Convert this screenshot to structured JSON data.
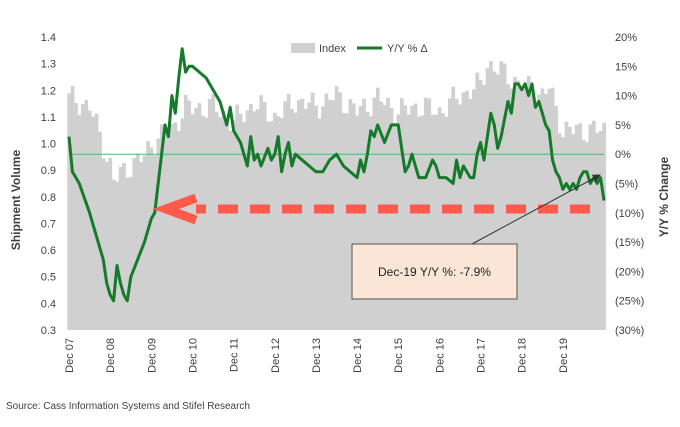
{
  "chart_data": {
    "type": "bar-line-combo",
    "colors": {
      "bars": "#d0d0d0",
      "line": "#157a2a",
      "zero_line": "#4dbb6b",
      "arrow": "#ff5a4a",
      "callout_fill": "#fbe5d6",
      "callout_border": "#555555",
      "right_axis_title": "#1a7a2e"
    },
    "legend": [
      {
        "name": "Index",
        "kind": "bar"
      },
      {
        "name": "Y/Y  % Δ",
        "kind": "line"
      }
    ],
    "left_axis": {
      "title": "Shipment Volume",
      "min": 0.3,
      "max": 1.4,
      "ticks": [
        "0.3",
        "0.4",
        "0.5",
        "0.6",
        "0.7",
        "0.8",
        "0.9",
        "1.0",
        "1.1",
        "1.2",
        "1.3",
        "1.4"
      ]
    },
    "right_axis": {
      "title": "Y/Y  % Change",
      "min": -30,
      "max": 20,
      "ticks": [
        {
          "value": 20,
          "label": "20%"
        },
        {
          "value": 15,
          "label": "15%"
        },
        {
          "value": 10,
          "label": "10%"
        },
        {
          "value": 5,
          "label": "5%"
        },
        {
          "value": 0,
          "label": "0%"
        },
        {
          "value": -5,
          "label": "(5%)"
        },
        {
          "value": -10,
          "label": "(10%)"
        },
        {
          "value": -15,
          "label": "(15%)"
        },
        {
          "value": -20,
          "label": "(20%)"
        },
        {
          "value": -25,
          "label": "(25%)"
        },
        {
          "value": -30,
          "label": "(30%)"
        }
      ]
    },
    "x_labels": [
      "Dec 07",
      "Dec 08",
      "Dec 09",
      "Dec 10",
      "Dec 11",
      "Dec 12",
      "Dec 13",
      "Dec 14",
      "Dec 15",
      "Dec 16",
      "Dec 17",
      "Dec 18",
      "Dec 19"
    ],
    "index_anchors": [
      [
        0,
        1.17
      ],
      [
        6,
        1.14
      ],
      [
        12,
        0.92
      ],
      [
        13,
        0.86
      ],
      [
        18,
        0.92
      ],
      [
        22,
        0.95
      ],
      [
        24,
        1.0
      ],
      [
        27,
        1.03
      ],
      [
        30,
        1.05
      ],
      [
        34,
        1.14
      ],
      [
        36,
        1.13
      ],
      [
        42,
        1.14
      ],
      [
        48,
        1.08
      ],
      [
        54,
        1.15
      ],
      [
        60,
        1.1
      ],
      [
        66,
        1.16
      ],
      [
        72,
        1.14
      ],
      [
        78,
        1.18
      ],
      [
        84,
        1.12
      ],
      [
        90,
        1.17
      ],
      [
        96,
        1.12
      ],
      [
        102,
        1.14
      ],
      [
        108,
        1.12
      ],
      [
        114,
        1.18
      ],
      [
        120,
        1.22
      ],
      [
        122,
        1.3
      ],
      [
        126,
        1.27
      ],
      [
        132,
        1.22
      ],
      [
        138,
        1.18
      ],
      [
        140,
        1.21
      ],
      [
        144,
        1.05
      ]
    ],
    "yoy_anchors": [
      [
        0,
        3
      ],
      [
        1,
        -3
      ],
      [
        3,
        -5
      ],
      [
        6,
        -10
      ],
      [
        8,
        -14
      ],
      [
        10,
        -18
      ],
      [
        11,
        -22
      ],
      [
        12,
        -24
      ],
      [
        13,
        -25
      ],
      [
        14,
        -19
      ],
      [
        15,
        -22
      ],
      [
        16,
        -24
      ],
      [
        17,
        -25
      ],
      [
        18,
        -21
      ],
      [
        20,
        -18
      ],
      [
        22,
        -15
      ],
      [
        24,
        -11
      ],
      [
        25,
        -10
      ],
      [
        26,
        -5
      ],
      [
        27,
        0
      ],
      [
        28,
        5
      ],
      [
        29,
        3
      ],
      [
        30,
        10
      ],
      [
        31,
        7
      ],
      [
        32,
        13
      ],
      [
        33,
        18
      ],
      [
        34,
        14
      ],
      [
        35,
        15
      ],
      [
        36,
        15
      ],
      [
        38,
        14
      ],
      [
        40,
        13
      ],
      [
        42,
        11
      ],
      [
        44,
        9
      ],
      [
        46,
        5
      ],
      [
        47,
        8
      ],
      [
        48,
        4
      ],
      [
        50,
        2
      ],
      [
        52,
        -2
      ],
      [
        53,
        3
      ],
      [
        54,
        -1
      ],
      [
        55,
        0
      ],
      [
        56,
        -2
      ],
      [
        58,
        1
      ],
      [
        59,
        -1
      ],
      [
        60,
        0
      ],
      [
        61,
        3
      ],
      [
        62,
        -3
      ],
      [
        63,
        0
      ],
      [
        64,
        2
      ],
      [
        65,
        -2
      ],
      [
        66,
        0
      ],
      [
        68,
        -1
      ],
      [
        70,
        -2
      ],
      [
        72,
        -3
      ],
      [
        74,
        -3
      ],
      [
        76,
        -1
      ],
      [
        78,
        0
      ],
      [
        80,
        -2
      ],
      [
        82,
        -3
      ],
      [
        84,
        -4
      ],
      [
        85,
        -1
      ],
      [
        86,
        -3
      ],
      [
        87,
        0
      ],
      [
        88,
        4
      ],
      [
        89,
        3
      ],
      [
        90,
        5
      ],
      [
        92,
        2
      ],
      [
        94,
        5
      ],
      [
        96,
        5
      ],
      [
        97,
        1
      ],
      [
        98,
        -3
      ],
      [
        99,
        -2
      ],
      [
        100,
        0
      ],
      [
        102,
        -4
      ],
      [
        104,
        -4
      ],
      [
        106,
        -1
      ],
      [
        107,
        -2
      ],
      [
        108,
        -4
      ],
      [
        110,
        -4
      ],
      [
        112,
        -5
      ],
      [
        113,
        -1
      ],
      [
        114,
        -4
      ],
      [
        115,
        -2
      ],
      [
        117,
        -4
      ],
      [
        118,
        -4
      ],
      [
        119,
        0
      ],
      [
        120,
        2
      ],
      [
        121,
        -1
      ],
      [
        122,
        3
      ],
      [
        123,
        7
      ],
      [
        124,
        5
      ],
      [
        125,
        1
      ],
      [
        126,
        3
      ],
      [
        128,
        9
      ],
      [
        129,
        7
      ],
      [
        130,
        12
      ],
      [
        131,
        12
      ],
      [
        132,
        11
      ],
      [
        133,
        12
      ],
      [
        134,
        10
      ],
      [
        135,
        12
      ],
      [
        136,
        8
      ],
      [
        137,
        9
      ],
      [
        138,
        7
      ],
      [
        139,
        5
      ],
      [
        140,
        4
      ],
      [
        141,
        -1
      ],
      [
        142,
        -3
      ],
      [
        143,
        -4
      ],
      [
        144,
        -6
      ],
      [
        145,
        -5
      ],
      [
        146,
        -6
      ],
      [
        147,
        -5
      ],
      [
        148,
        -6
      ],
      [
        149,
        -4
      ],
      [
        150,
        -3
      ],
      [
        151,
        -3
      ],
      [
        152,
        -5
      ],
      [
        153,
        -4
      ],
      [
        154,
        -5
      ],
      [
        155,
        -4
      ],
      [
        156,
        -7.9
      ]
    ],
    "callout": "Dec-19 Y/Y %: -7.9%"
  },
  "source": "Source: Cass Information Systems and Stifel Research"
}
